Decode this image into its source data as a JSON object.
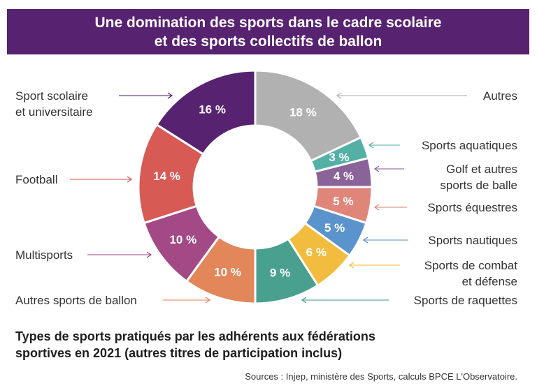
{
  "chart_data": {
    "type": "pie",
    "donut": true,
    "title": "Une domination des sports dans le cadre scolaire et des sports collectifs de ballon",
    "title_lines": [
      "Une domination des sports dans le cadre scolaire",
      "et des sports collectifs de ballon"
    ],
    "subtitle_lines": [
      "Types de sports pratiqués par les adhérents aux fédérations",
      "sportives en 2021 (autres titres de participation inclus)"
    ],
    "source": "Sources : Injep, ministère des Sports, calculs BPCE L'Observatoire.",
    "start": "12 o'clock, clockwise",
    "slices": [
      {
        "label": [
          "Autres"
        ],
        "value": 18,
        "text": "18 %",
        "color": "#b1b1b1"
      },
      {
        "label": [
          "Sports aquatiques"
        ],
        "value": 3,
        "text": "3 %",
        "color": "#52b0a5"
      },
      {
        "label": [
          "Golf et autres",
          "sports de balle"
        ],
        "value": 4,
        "text": "4 %",
        "color": "#8a6399"
      },
      {
        "label": [
          "Sports équestres"
        ],
        "value": 5,
        "text": "5 %",
        "color": "#e0857a"
      },
      {
        "label": [
          "Sports nautiques"
        ],
        "value": 5,
        "text": "5 %",
        "color": "#5b93cd"
      },
      {
        "label": [
          "Sports de combat",
          "et défense"
        ],
        "value": 6,
        "text": "6 %",
        "color": "#f2bd3e"
      },
      {
        "label": [
          "Sports de raquettes"
        ],
        "value": 9,
        "text": "9 %",
        "color": "#49a08f"
      },
      {
        "label": [
          "Autres sports de ballon"
        ],
        "value": 10,
        "text": "10 %",
        "color": "#e2875a"
      },
      {
        "label": [
          "Multisports"
        ],
        "value": 10,
        "text": "10 %",
        "color": "#a34a86"
      },
      {
        "label": [
          "Football"
        ],
        "value": 14,
        "text": "14 %",
        "color": "#d75a55"
      },
      {
        "label": [
          "Sport scolaire",
          "et universitaire"
        ],
        "value": 16,
        "text": "16 %",
        "color": "#572270"
      }
    ]
  },
  "colors": {
    "banner": "#57226f"
  }
}
